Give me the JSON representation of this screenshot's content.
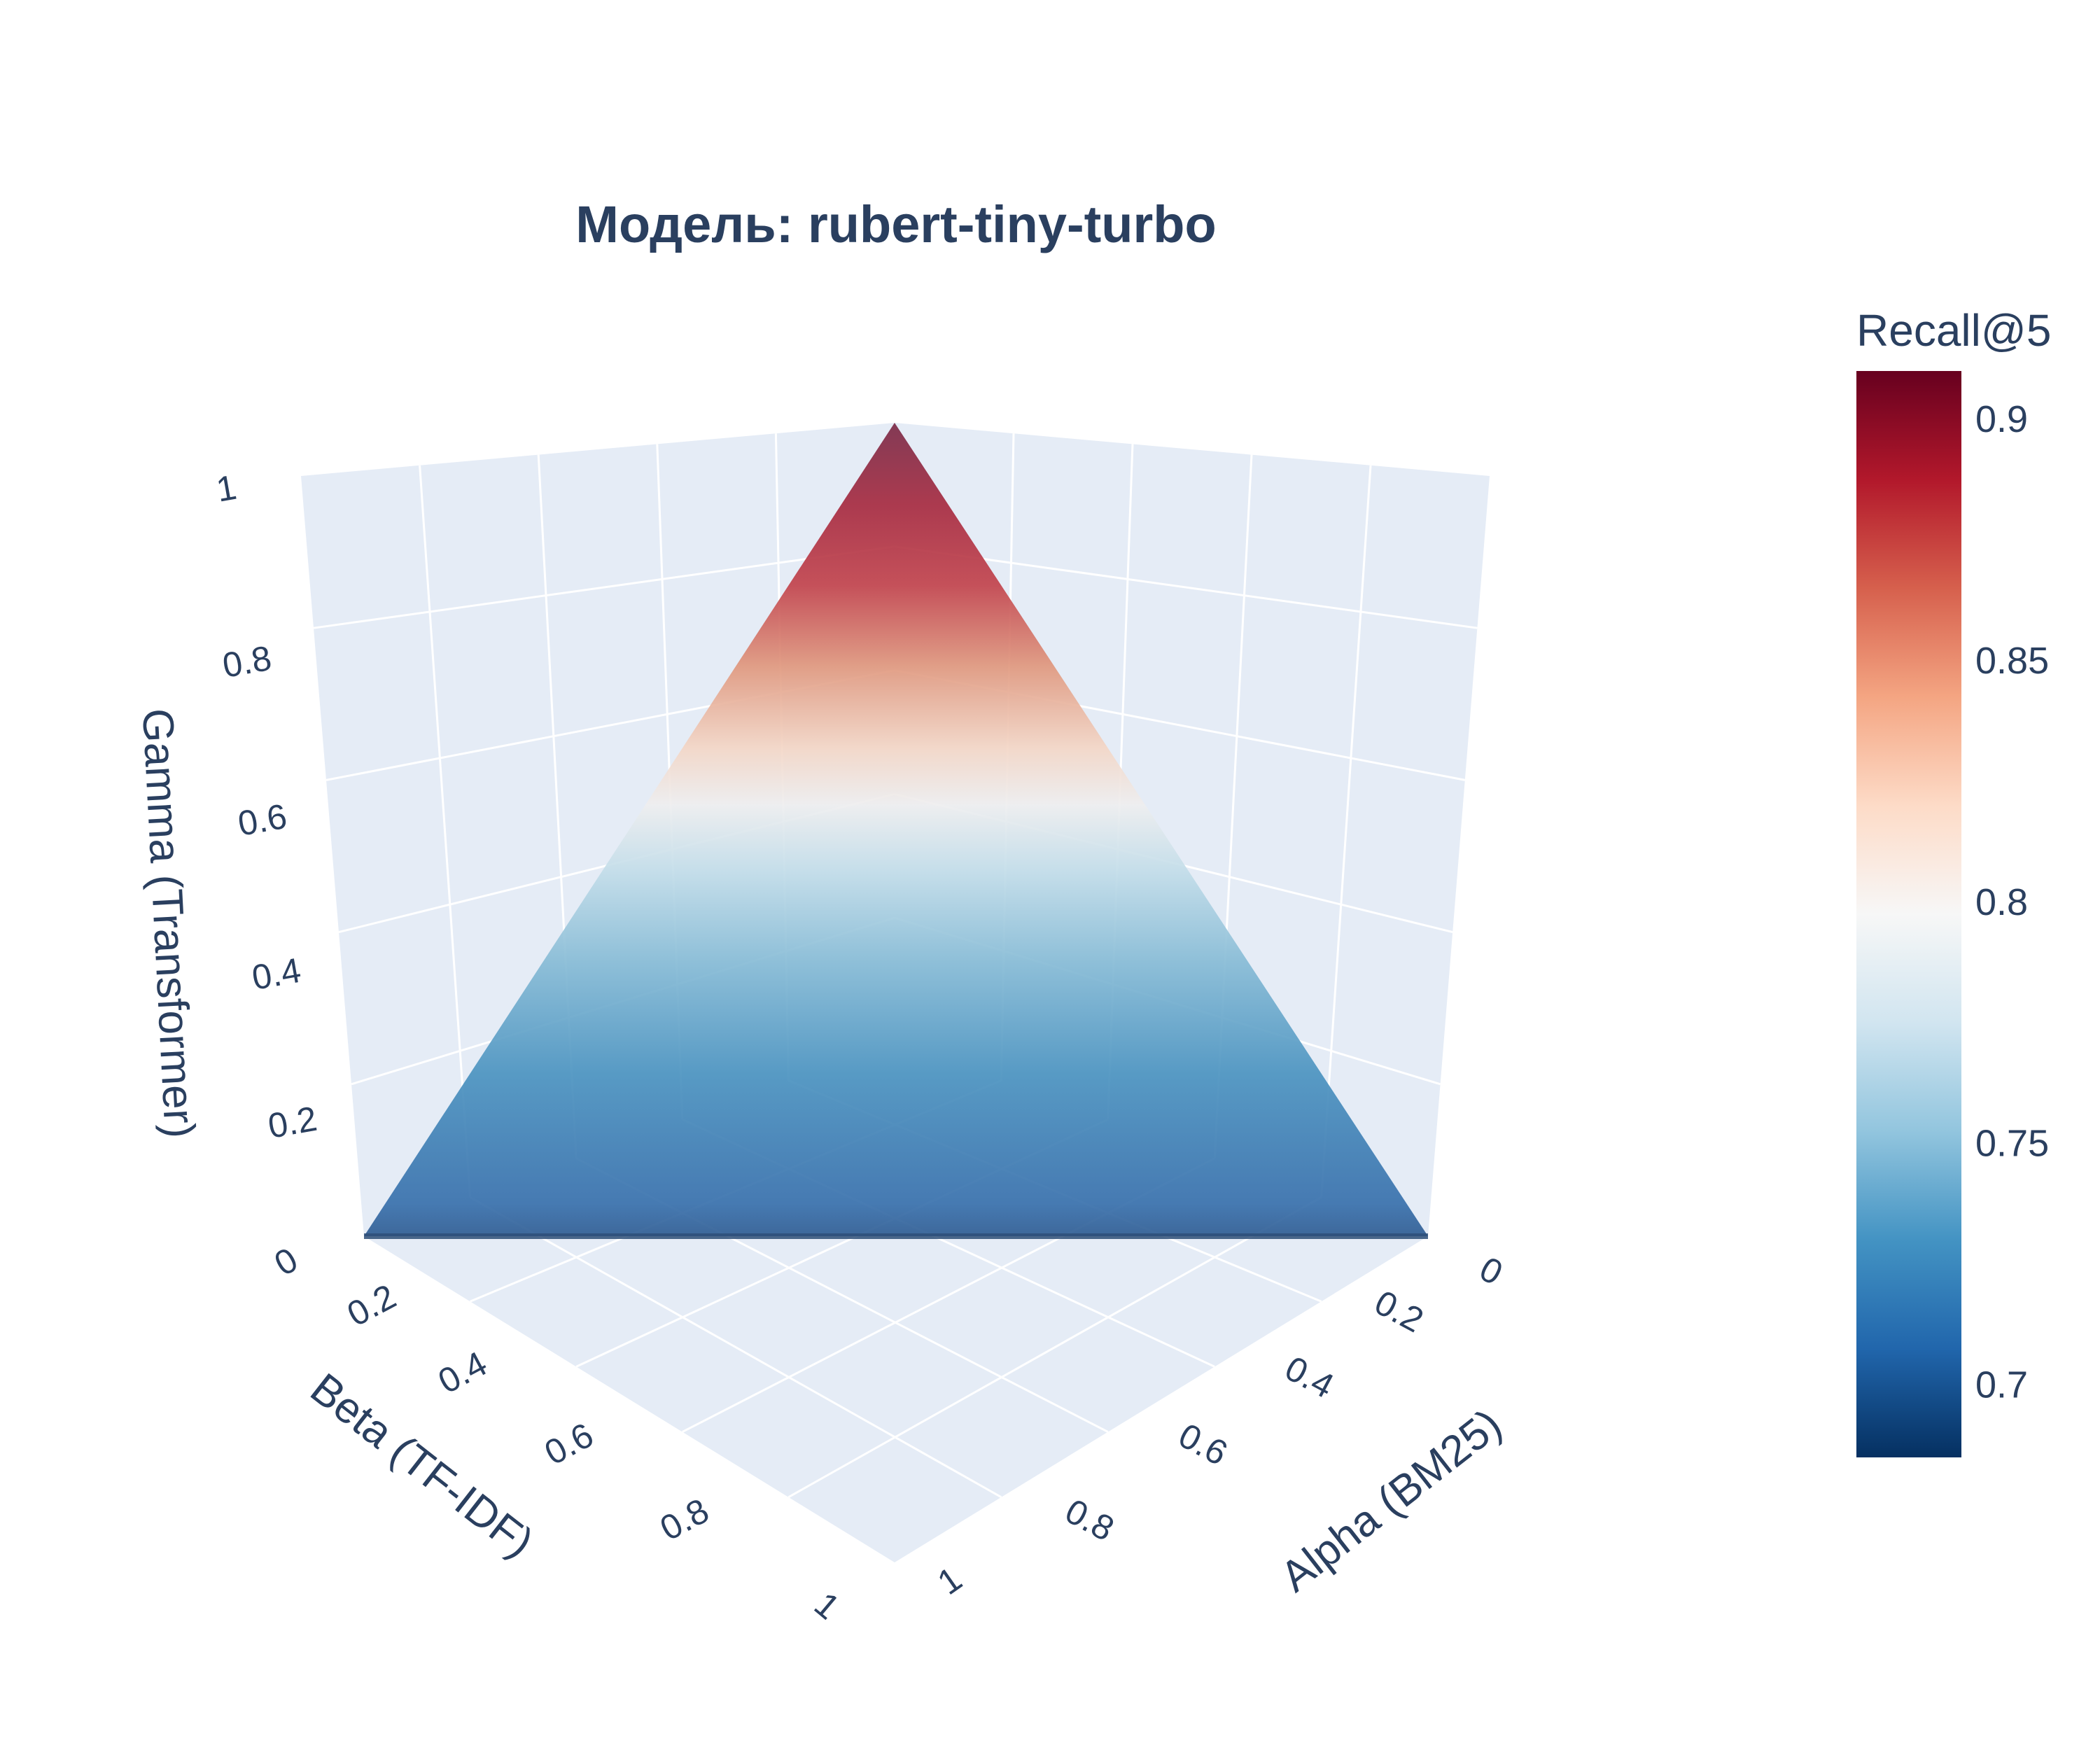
{
  "chart_data": {
    "type": "surface3d",
    "title": "Модель: rubert-tiny-turbo",
    "x_axis": {
      "label": "Alpha (BM25)",
      "ticks": [
        "0",
        "0.2",
        "0.4",
        "0.6",
        "0.8",
        "1"
      ],
      "range": [
        0,
        1
      ]
    },
    "y_axis": {
      "label": "Beta (TF-IDF)",
      "ticks": [
        "0",
        "0.2",
        "0.4",
        "0.6",
        "0.8",
        "1"
      ],
      "range": [
        0,
        1
      ]
    },
    "z_axis": {
      "label": "Gamma (Transformer)",
      "ticks": [
        "0",
        "0.2",
        "0.4",
        "0.6",
        "0.8",
        "1"
      ],
      "range": [
        0,
        1
      ]
    },
    "surface": {
      "constraint": "alpha + beta + gamma = 1",
      "vertices": [
        {
          "alpha": 1,
          "beta": 0,
          "gamma": 0
        },
        {
          "alpha": 0,
          "beta": 1,
          "gamma": 0
        },
        {
          "alpha": 0,
          "beta": 0,
          "gamma": 1
        }
      ],
      "color_by": "gamma",
      "recall_at_gamma": [
        {
          "gamma": 0.0,
          "recall": 0.72
        },
        {
          "gamma": 0.2,
          "recall": 0.745
        },
        {
          "gamma": 0.4,
          "recall": 0.775
        },
        {
          "gamma": 0.55,
          "recall": 0.8
        },
        {
          "gamma": 0.7,
          "recall": 0.845
        },
        {
          "gamma": 0.85,
          "recall": 0.885
        },
        {
          "gamma": 1.0,
          "recall": 0.905
        }
      ]
    },
    "colorbar": {
      "title": "Recall@5",
      "colorscale": "RdBu_r",
      "range": [
        0.685,
        0.91
      ],
      "ticks": [
        "0.9",
        "0.85",
        "0.8",
        "0.75",
        "0.7"
      ],
      "tick_values": [
        0.9,
        0.85,
        0.8,
        0.75,
        0.7
      ]
    },
    "grid": true
  },
  "colors": {
    "pane": "#e5ecf6",
    "text": "#2a3f5f",
    "gridline": "#ffffff"
  }
}
